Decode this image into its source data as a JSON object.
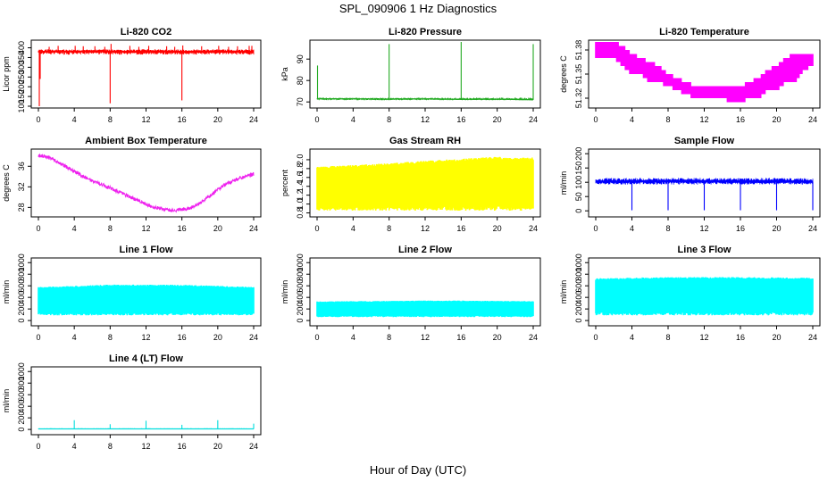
{
  "figure": {
    "title": "SPL_090906  1 Hz Diagnostics",
    "xlabel": "Hour of Day (UTC)"
  },
  "chart_data": [
    {
      "type": "line",
      "title": "Li-820 CO2",
      "ylabel": "Licor ppm",
      "color": "#ff0000",
      "xlim": [
        0,
        24
      ],
      "xticks": [
        0,
        4,
        8,
        12,
        16,
        20,
        24
      ],
      "ylim": [
        100,
        430
      ],
      "yticks": [
        100,
        150,
        200,
        250,
        300,
        350,
        400
      ],
      "series": [
        {
          "style": "baseline-with-spikes",
          "x": [
            0,
            2,
            4,
            6,
            8,
            10,
            12,
            14,
            16,
            18,
            20,
            22,
            24
          ],
          "y": [
            380,
            382,
            381,
            383,
            382,
            380,
            381,
            382,
            380,
            381,
            382,
            381,
            380
          ],
          "band": [
            365,
            392
          ],
          "spikes": [
            {
              "x": 0.1,
              "y": 100
            },
            {
              "x": 0.2,
              "y": 240
            },
            {
              "x": 1.2,
              "y": 405
            },
            {
              "x": 2.2,
              "y": 410
            },
            {
              "x": 4.1,
              "y": 410
            },
            {
              "x": 5.0,
              "y": 408
            },
            {
              "x": 6.3,
              "y": 408
            },
            {
              "x": 7.4,
              "y": 405
            },
            {
              "x": 8.0,
              "y": 115
            },
            {
              "x": 8.1,
              "y": 420
            },
            {
              "x": 10.2,
              "y": 410
            },
            {
              "x": 11.2,
              "y": 405
            },
            {
              "x": 12.3,
              "y": 410
            },
            {
              "x": 14.3,
              "y": 408
            },
            {
              "x": 15.2,
              "y": 405
            },
            {
              "x": 16.0,
              "y": 130
            },
            {
              "x": 16.1,
              "y": 412
            },
            {
              "x": 18.2,
              "y": 408
            },
            {
              "x": 20.1,
              "y": 410
            },
            {
              "x": 21.2,
              "y": 405
            },
            {
              "x": 22.2,
              "y": 408
            },
            {
              "x": 23.5,
              "y": 410
            },
            {
              "x": 23.8,
              "y": 410
            }
          ]
        }
      ]
    },
    {
      "type": "line",
      "title": "Li-820 Pressure",
      "ylabel": "kPa",
      "color": "#22aa22",
      "xlim": [
        0,
        24
      ],
      "xticks": [
        0,
        4,
        8,
        12,
        16,
        20,
        24
      ],
      "ylim": [
        68,
        98
      ],
      "yticks": [
        70,
        80,
        90
      ],
      "series": [
        {
          "style": "baseline-with-spikes",
          "x": [
            0,
            4,
            8,
            12,
            16,
            20,
            24
          ],
          "y": [
            71.5,
            71.4,
            71.3,
            71.4,
            71.2,
            71.3,
            71.0
          ],
          "band": [
            70.8,
            72.0
          ],
          "spikes": [
            {
              "x": 0.05,
              "y": 87
            },
            {
              "x": 8.0,
              "y": 97
            },
            {
              "x": 16.0,
              "y": 98
            },
            {
              "x": 24.0,
              "y": 97
            }
          ]
        }
      ]
    },
    {
      "type": "line",
      "title": "Li-820 Temperature",
      "ylabel": "degrees C",
      "color": "#ff00ff",
      "xlim": [
        0,
        24
      ],
      "xticks": [
        0,
        4,
        8,
        12,
        16,
        20,
        24
      ],
      "ylim": [
        51.31,
        51.39
      ],
      "yticks": [
        51.32,
        51.35,
        51.38
      ],
      "series": [
        {
          "style": "quantized-band",
          "x": [
            0,
            1,
            2,
            3,
            4,
            5,
            6,
            7,
            8,
            9,
            10,
            11,
            12,
            13,
            14,
            15,
            16,
            17,
            18,
            19,
            20,
            21,
            22,
            23,
            24
          ],
          "ylow": [
            51.37,
            51.37,
            51.37,
            51.36,
            51.35,
            51.35,
            51.34,
            51.34,
            51.335,
            51.33,
            51.325,
            51.32,
            51.32,
            51.32,
            51.32,
            51.315,
            51.315,
            51.32,
            51.32,
            51.33,
            51.33,
            51.34,
            51.34,
            51.355,
            51.36
          ],
          "yhigh": [
            51.39,
            51.39,
            51.39,
            51.385,
            51.375,
            51.37,
            51.365,
            51.36,
            51.35,
            51.345,
            51.34,
            51.335,
            51.335,
            51.335,
            51.335,
            51.335,
            51.335,
            51.34,
            51.345,
            51.355,
            51.36,
            51.37,
            51.375,
            51.375,
            51.375
          ]
        }
      ]
    },
    {
      "type": "line",
      "title": "Ambient Box Temperature",
      "ylabel": "degrees C",
      "color": "#ee22ee",
      "xlim": [
        0,
        24
      ],
      "xticks": [
        0,
        4,
        8,
        12,
        16,
        20,
        24
      ],
      "ylim": [
        26.5,
        39
      ],
      "yticks": [
        28,
        32,
        36
      ],
      "series": [
        {
          "style": "noisy-line",
          "noise": 0.35,
          "x": [
            0,
            1,
            2,
            3,
            4,
            5,
            6,
            7,
            8,
            9,
            10,
            11,
            12,
            13,
            14,
            15,
            16,
            17,
            18,
            19,
            20,
            21,
            22,
            23,
            24
          ],
          "y": [
            38.0,
            37.8,
            37.0,
            36.0,
            35.0,
            34.0,
            33.2,
            32.5,
            31.8,
            31.0,
            30.2,
            29.4,
            28.6,
            28.0,
            27.6,
            27.4,
            27.5,
            27.9,
            28.8,
            30.1,
            31.5,
            32.6,
            33.4,
            34.0,
            34.5
          ]
        }
      ]
    },
    {
      "type": "area",
      "title": "Gas Stream RH",
      "ylabel": "percent",
      "color": "#ffff00",
      "xlim": [
        0,
        24
      ],
      "xticks": [
        0,
        4,
        8,
        12,
        16,
        20,
        24
      ],
      "ylim": [
        0.75,
        2.2
      ],
      "yticks": [
        0.8,
        1.0,
        1.2,
        1.4,
        1.6,
        1.8,
        2.0
      ],
      "series": [
        {
          "style": "range-band",
          "x": [
            0,
            2,
            4,
            6,
            8,
            10,
            12,
            14,
            16,
            18,
            20,
            22,
            24
          ],
          "ylow": [
            0.85,
            0.85,
            0.85,
            0.85,
            0.85,
            0.85,
            0.85,
            0.85,
            0.85,
            0.85,
            0.85,
            0.85,
            0.85
          ],
          "yhigh": [
            1.85,
            1.86,
            1.88,
            1.9,
            1.92,
            1.95,
            1.98,
            2.0,
            2.02,
            2.05,
            2.07,
            2.05,
            2.05
          ]
        }
      ]
    },
    {
      "type": "line",
      "title": "Sample Flow",
      "ylabel": "ml/min",
      "color": "#0000ff",
      "xlim": [
        0,
        24
      ],
      "xticks": [
        0,
        4,
        8,
        12,
        16,
        20,
        24
      ],
      "ylim": [
        -15,
        210
      ],
      "yticks": [
        0,
        50,
        100,
        150,
        200
      ],
      "series": [
        {
          "style": "baseline-with-spikes",
          "x": [
            0,
            4,
            8,
            12,
            16,
            20,
            24
          ],
          "y": [
            102,
            103,
            104,
            104,
            103,
            103,
            102
          ],
          "band": [
            92,
            115
          ],
          "spikes": [
            {
              "x": 4.0,
              "y": 2
            },
            {
              "x": 8.0,
              "y": 2
            },
            {
              "x": 12.0,
              "y": 2
            },
            {
              "x": 16.0,
              "y": 2
            },
            {
              "x": 20.0,
              "y": 2
            },
            {
              "x": 24.0,
              "y": 2
            }
          ]
        }
      ]
    },
    {
      "type": "area",
      "title": "Line 1 Flow",
      "ylabel": "ml/min",
      "color": "#00ffff",
      "xlim": [
        0,
        24
      ],
      "xticks": [
        0,
        4,
        8,
        12,
        16,
        20,
        24
      ],
      "ylim": [
        -60,
        1050
      ],
      "yticks": [
        0,
        200,
        400,
        600,
        800,
        1000
      ],
      "series": [
        {
          "style": "range-band",
          "x": [
            0,
            4,
            8,
            12,
            16,
            20,
            24
          ],
          "ylow": [
            90,
            90,
            90,
            90,
            90,
            90,
            90
          ],
          "yhigh": [
            580,
            600,
            620,
            620,
            620,
            600,
            580
          ]
        }
      ]
    },
    {
      "type": "area",
      "title": "Line 2 Flow",
      "ylabel": "ml/min",
      "color": "#00ffff",
      "xlim": [
        0,
        24
      ],
      "xticks": [
        0,
        4,
        8,
        12,
        16,
        20,
        24
      ],
      "ylim": [
        -60,
        1050
      ],
      "yticks": [
        0,
        200,
        400,
        600,
        800,
        1000
      ],
      "series": [
        {
          "style": "range-band",
          "x": [
            0,
            4,
            8,
            12,
            16,
            20,
            24
          ],
          "ylow": [
            60,
            60,
            60,
            60,
            60,
            60,
            60
          ],
          "yhigh": [
            330,
            335,
            340,
            345,
            345,
            340,
            335
          ]
        }
      ]
    },
    {
      "type": "area",
      "title": "Line 3 Flow",
      "ylabel": "ml/min",
      "color": "#00ffff",
      "xlim": [
        0,
        24
      ],
      "xticks": [
        0,
        4,
        8,
        12,
        16,
        20,
        24
      ],
      "ylim": [
        -60,
        1050
      ],
      "yticks": [
        0,
        200,
        400,
        600,
        800,
        1000
      ],
      "series": [
        {
          "style": "range-band",
          "x": [
            0,
            4,
            8,
            12,
            16,
            20,
            24
          ],
          "ylow": [
            90,
            90,
            90,
            90,
            90,
            90,
            90
          ],
          "yhigh": [
            730,
            740,
            750,
            750,
            750,
            745,
            740
          ]
        }
      ]
    },
    {
      "type": "line",
      "title": "Line 4 (LT) Flow",
      "ylabel": "ml/min",
      "color": "#00dddd",
      "xlim": [
        0,
        24
      ],
      "xticks": [
        0,
        4,
        8,
        12,
        16,
        20,
        24
      ],
      "ylim": [
        -60,
        1050
      ],
      "yticks": [
        0,
        200,
        400,
        600,
        800,
        1000
      ],
      "series": [
        {
          "style": "baseline-with-spikes",
          "x": [
            0,
            4,
            8,
            12,
            16,
            20,
            24
          ],
          "y": [
            10,
            10,
            10,
            10,
            10,
            10,
            10
          ],
          "band": [
            5,
            20
          ],
          "spikes": [
            {
              "x": 4.0,
              "y": 160
            },
            {
              "x": 8.0,
              "y": 90
            },
            {
              "x": 12.0,
              "y": 150
            },
            {
              "x": 16.0,
              "y": 80
            },
            {
              "x": 20.0,
              "y": 160
            },
            {
              "x": 24.0,
              "y": 100
            }
          ]
        }
      ]
    }
  ]
}
